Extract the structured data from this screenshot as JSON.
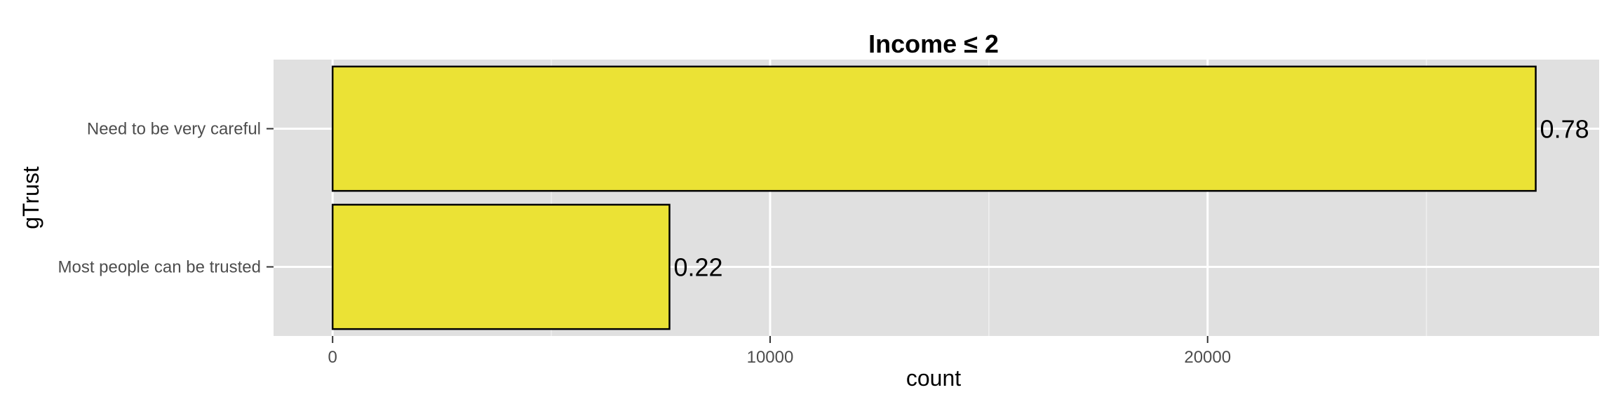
{
  "chart_data": {
    "type": "bar",
    "orientation": "horizontal",
    "title": "Income ≤ 2",
    "xlabel": "count",
    "ylabel": "gTrust",
    "categories": [
      "Need to be very careful",
      "Most people can be trusted"
    ],
    "values": [
      27500,
      7700
    ],
    "data_labels": [
      "0.78",
      "0.22"
    ],
    "xlim": [
      -1350,
      28950
    ],
    "xticks": [
      0,
      10000,
      20000
    ],
    "xtick_labels": [
      "0",
      "10000",
      "20000"
    ],
    "grid": true,
    "legend": "none",
    "colors": {
      "bar_fill": "#ebe235",
      "bar_stroke": "#000000",
      "panel_background": "#e0e0e0",
      "grid_major": "#ffffff",
      "grid_minor": "#efefef"
    }
  }
}
